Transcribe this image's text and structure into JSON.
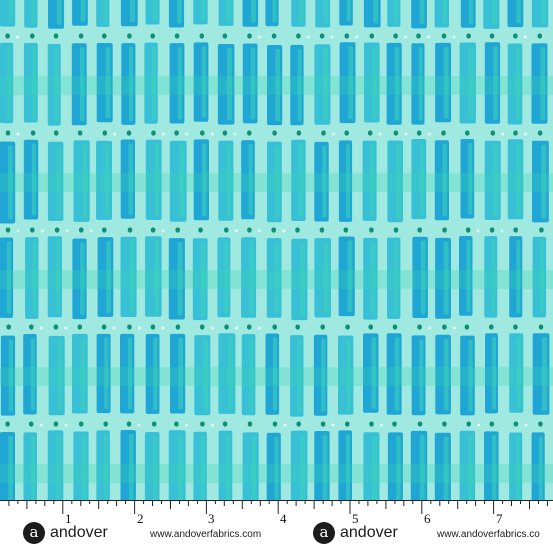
{
  "swatch": {
    "colors": {
      "background": "#9fe9e0",
      "bar_mid": "#2fbcd6",
      "bar_dark": "#139fd2",
      "bar_mint": "#3ed3b8",
      "dot": "#0f8f74",
      "sparkle": "#f4fffd"
    },
    "pattern": "rows of vertical turquoise dash bars separated by dotted lines"
  },
  "ruler": {
    "numbers": [
      "1",
      "2",
      "3",
      "4",
      "5",
      "6",
      "7"
    ],
    "brand": {
      "logo_letter": "a",
      "name": "andover",
      "url": "www.andoverfabrics.com",
      "url_cut": "www.andoverfabrics.co"
    }
  }
}
